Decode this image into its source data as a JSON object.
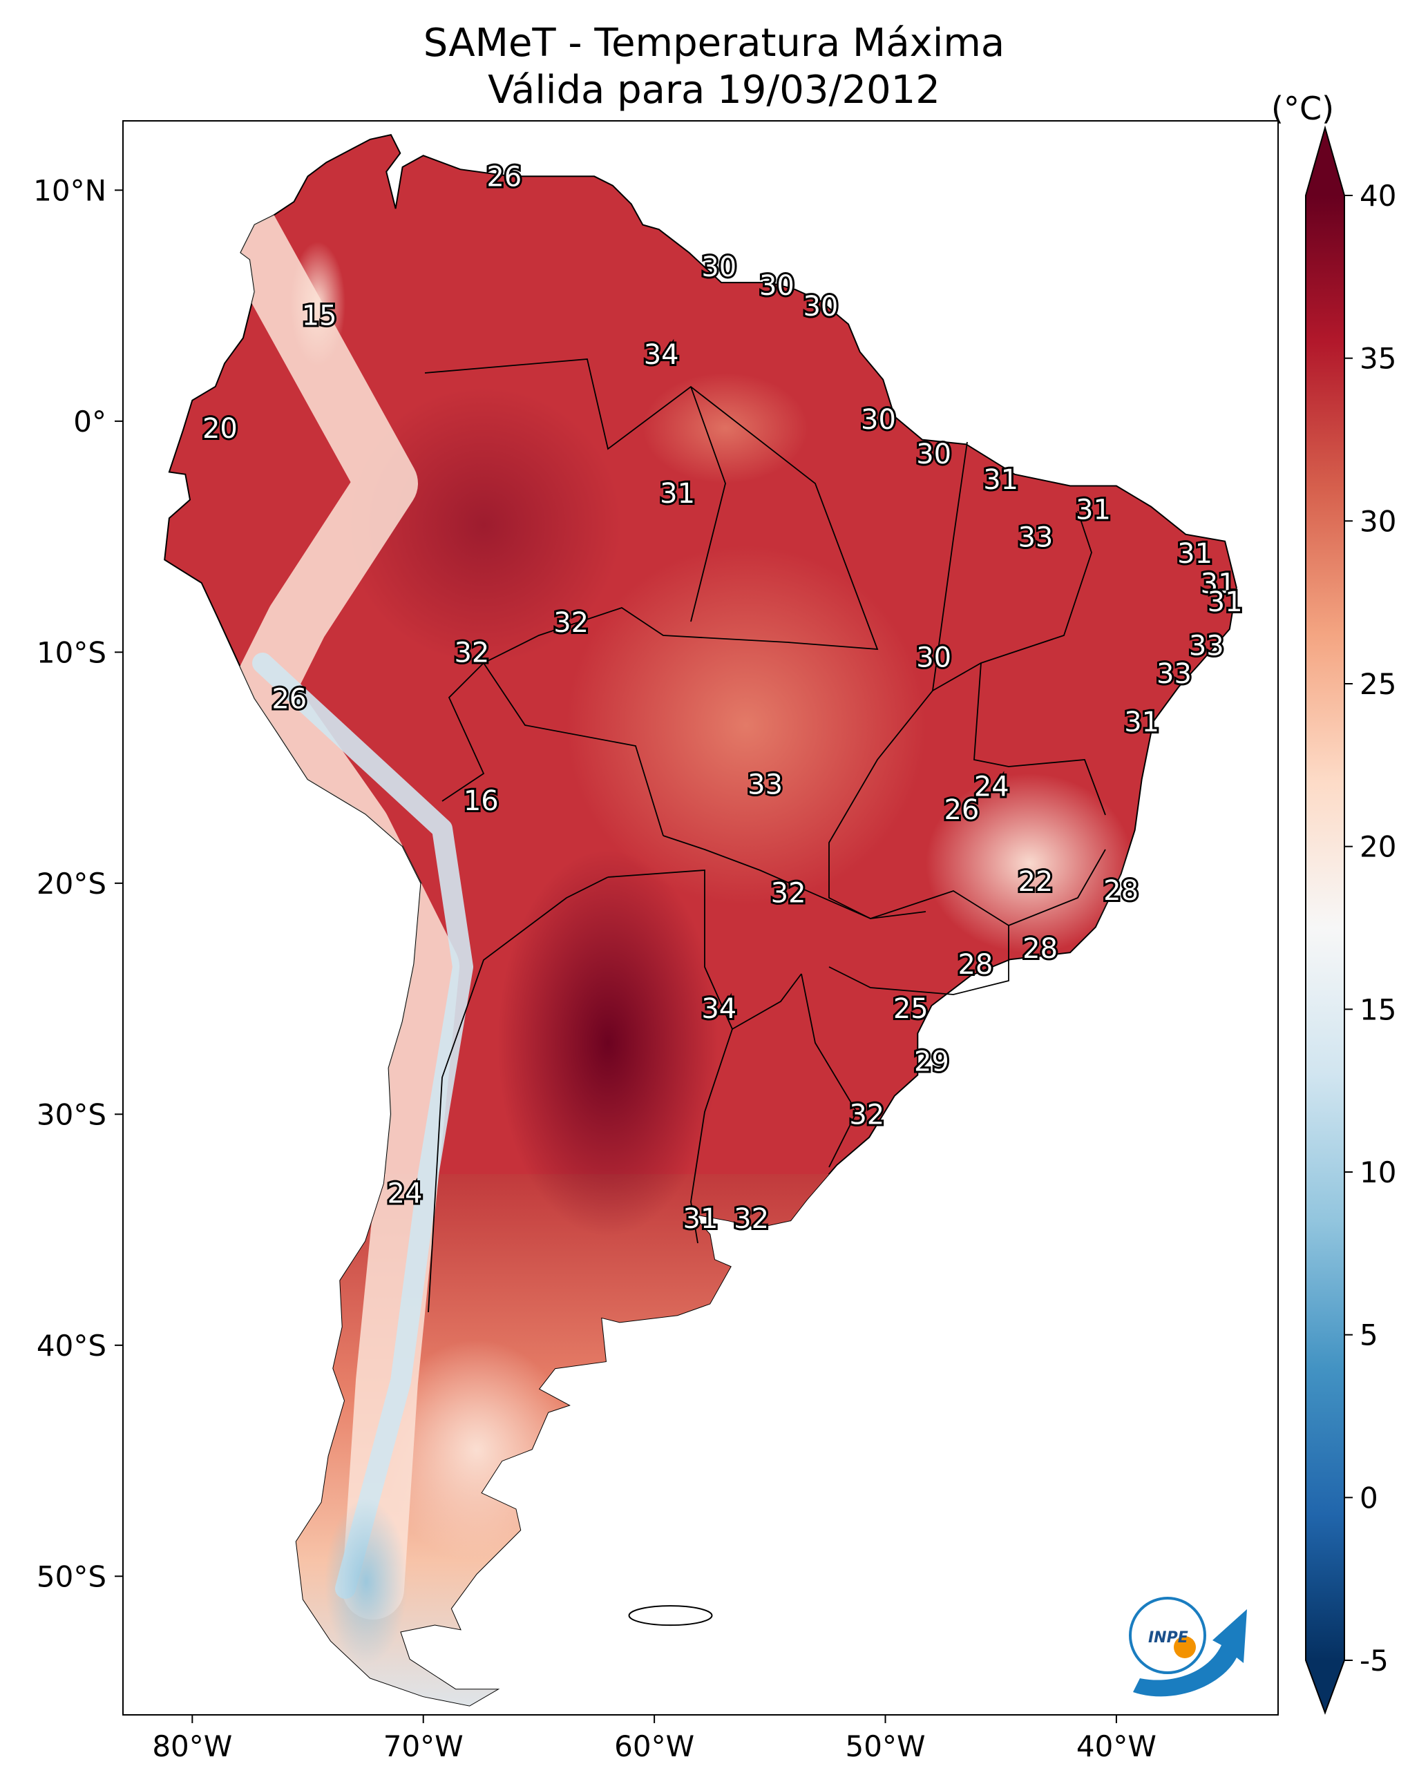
{
  "title": {
    "line1": "SAMeT - Temperatura Máxima",
    "line2": "Válida para 19/03/2012"
  },
  "colorbar": {
    "unit": "(°C)",
    "min": -5,
    "max": 40,
    "ticks": [
      "40",
      "35",
      "30",
      "25",
      "20",
      "15",
      "10",
      "5",
      "0",
      "-5"
    ],
    "colors": [
      "#053061",
      "#2166ac",
      "#4393c3",
      "#92c5de",
      "#d1e5f0",
      "#f7f7f7",
      "#fddbc7",
      "#f4a582",
      "#d6604d",
      "#b2182b",
      "#67001f"
    ]
  },
  "axes": {
    "lon_ticks": [
      "80°W",
      "70°W",
      "60°W",
      "50°W",
      "40°W"
    ],
    "lat_ticks": [
      "10°N",
      "0°",
      "10°S",
      "20°S",
      "30°S",
      "40°S",
      "50°S"
    ]
  },
  "map_data": {
    "extent": {
      "lon_min": -83,
      "lon_max": -33,
      "lat_min": -56,
      "lat_max": 13
    },
    "labels": [
      {
        "text": "26",
        "lon": -66.5,
        "lat": 10.5
      },
      {
        "text": "15",
        "lon": -74.5,
        "lat": 4.5
      },
      {
        "text": "30",
        "lon": -57.2,
        "lat": 6.6
      },
      {
        "text": "30",
        "lon": -54.7,
        "lat": 5.8
      },
      {
        "text": "30",
        "lon": -52.8,
        "lat": 4.9
      },
      {
        "text": "34",
        "lon": -59.7,
        "lat": 2.8
      },
      {
        "text": "20",
        "lon": -78.8,
        "lat": -0.4
      },
      {
        "text": "30",
        "lon": -50.3,
        "lat": 0.0
      },
      {
        "text": "30",
        "lon": -47.9,
        "lat": -1.5
      },
      {
        "text": "31",
        "lon": -59.0,
        "lat": -3.2
      },
      {
        "text": "31",
        "lon": -45.0,
        "lat": -2.6
      },
      {
        "text": "31",
        "lon": -41.0,
        "lat": -3.9
      },
      {
        "text": "33",
        "lon": -43.5,
        "lat": -5.1
      },
      {
        "text": "31",
        "lon": -36.6,
        "lat": -5.8
      },
      {
        "text": "31",
        "lon": -35.6,
        "lat": -7.1
      },
      {
        "text": "31",
        "lon": -35.3,
        "lat": -7.9
      },
      {
        "text": "33",
        "lon": -36.1,
        "lat": -9.8
      },
      {
        "text": "33",
        "lon": -37.5,
        "lat": -11.0
      },
      {
        "text": "32",
        "lon": -63.6,
        "lat": -8.8
      },
      {
        "text": "32",
        "lon": -67.9,
        "lat": -10.1
      },
      {
        "text": "30",
        "lon": -47.9,
        "lat": -10.3
      },
      {
        "text": "31",
        "lon": -38.9,
        "lat": -13.1
      },
      {
        "text": "26",
        "lon": -75.8,
        "lat": -12.1
      },
      {
        "text": "24",
        "lon": -45.4,
        "lat": -15.9
      },
      {
        "text": "26",
        "lon": -46.7,
        "lat": -16.9
      },
      {
        "text": "16",
        "lon": -67.5,
        "lat": -16.5
      },
      {
        "text": "33",
        "lon": -55.2,
        "lat": -15.8
      },
      {
        "text": "22",
        "lon": -43.5,
        "lat": -20.0
      },
      {
        "text": "28",
        "lon": -39.8,
        "lat": -20.4
      },
      {
        "text": "32",
        "lon": -54.2,
        "lat": -20.5
      },
      {
        "text": "28",
        "lon": -43.3,
        "lat": -22.9
      },
      {
        "text": "28",
        "lon": -46.1,
        "lat": -23.6
      },
      {
        "text": "34",
        "lon": -57.2,
        "lat": -25.5
      },
      {
        "text": "25",
        "lon": -48.9,
        "lat": -25.5
      },
      {
        "text": "29",
        "lon": -48.0,
        "lat": -27.8
      },
      {
        "text": "32",
        "lon": -50.8,
        "lat": -30.1
      },
      {
        "text": "24",
        "lon": -70.8,
        "lat": -33.5
      },
      {
        "text": "31",
        "lon": -58.0,
        "lat": -34.6
      },
      {
        "text": "32",
        "lon": -55.8,
        "lat": -34.6
      }
    ]
  },
  "logo": {
    "text": "INPE"
  }
}
